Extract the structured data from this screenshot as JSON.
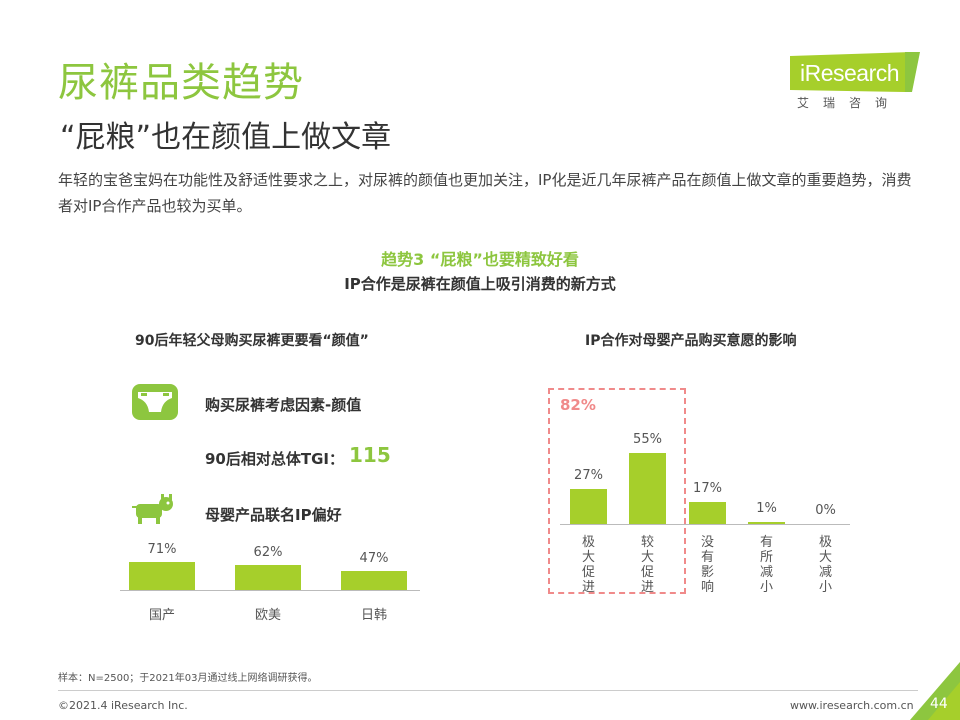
{
  "header": {
    "title": "尿裤品类趋势",
    "subtitle": "“屁粮”也在颜值上做文章",
    "intro": "年轻的宝爸宝妈在功能性及舒适性要求之上，对尿裤的颜值也更加关注，IP化是近几年尿裤产品在颜值上做文章的重要趋势，消费者对IP合作产品也较为买单。"
  },
  "logo": {
    "text": "iResearch",
    "sub": "艾瑞咨询"
  },
  "trend": {
    "title": "趋势3 “屁粮”也要精致好看",
    "subtitle": "IP合作是尿裤在颜值上吸引消费的新方式"
  },
  "left": {
    "title": "90后年轻父母购买尿裤更要看“颜值”",
    "factor": "购买尿裤考虑因素-颜值",
    "tgi_label": "90后相对总体TGI：",
    "tgi_value": "115",
    "ip_label": "母婴产品联名IP偏好"
  },
  "right": {
    "title": "IP合作对母婴产品购买意愿的影响",
    "highlight": "82%"
  },
  "chart_data": [
    {
      "type": "bar",
      "title": "母婴产品联名IP偏好",
      "categories": [
        "国产",
        "欧美",
        "日韩"
      ],
      "values": [
        71,
        62,
        47
      ],
      "value_labels": [
        "71%",
        "62%",
        "47%"
      ],
      "unit": "%"
    },
    {
      "type": "bar",
      "title": "IP合作对母婴产品购买意愿的影响",
      "categories": [
        "极大促进",
        "较大促进",
        "没有影响",
        "有所减小",
        "极大减小"
      ],
      "values": [
        27,
        55,
        17,
        1,
        0
      ],
      "value_labels": [
        "27%",
        "55%",
        "17%",
        "1%",
        "0%"
      ],
      "unit": "%",
      "annotation": "82%"
    }
  ],
  "footer": {
    "note": "样本：N=2500；于2021年03月通过线上网络调研获得。",
    "copyright": "©2021.4 iResearch Inc.",
    "url": "www.iresearch.com.cn",
    "page": "44"
  },
  "colors": {
    "accent": "#8dc63f",
    "bar": "#a6cf2b",
    "highlight": "#f08a8a"
  }
}
